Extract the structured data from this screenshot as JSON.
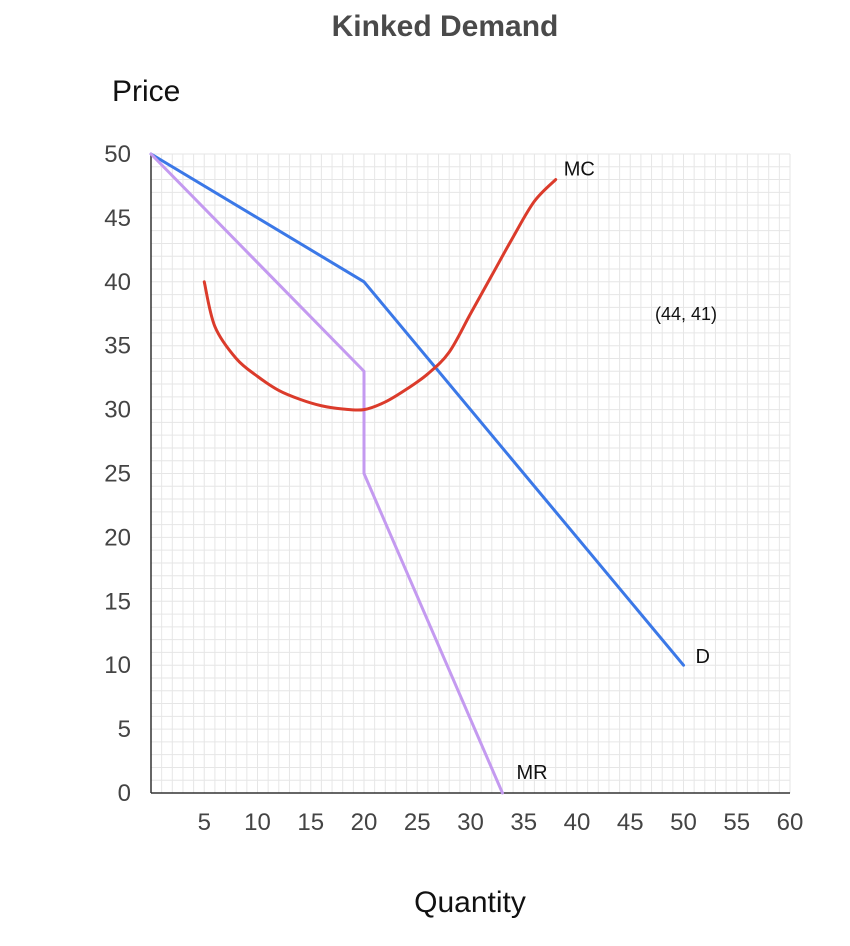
{
  "chart_data": {
    "type": "line",
    "title": "Kinked Demand",
    "xlabel": "Quantity",
    "ylabel": "Price",
    "xlim": [
      0,
      60
    ],
    "ylim": [
      0,
      50
    ],
    "x_ticks": [
      5,
      10,
      15,
      20,
      25,
      30,
      35,
      40,
      45,
      50,
      55,
      60
    ],
    "y_ticks": [
      0,
      5,
      10,
      15,
      20,
      25,
      30,
      35,
      40,
      45,
      50
    ],
    "grid": true,
    "annotation": "(44, 41)",
    "series": [
      {
        "name": "D",
        "color": "#3b78e7",
        "points": [
          [
            0,
            50
          ],
          [
            20,
            40
          ],
          [
            50,
            10
          ]
        ]
      },
      {
        "name": "MR",
        "color": "#c49af0",
        "points": [
          [
            0,
            50
          ],
          [
            20,
            33
          ],
          [
            20,
            25
          ],
          [
            33,
            0
          ]
        ]
      },
      {
        "name": "MC",
        "color": "#db3b2b",
        "points": [
          [
            5,
            40
          ],
          [
            6,
            36.5
          ],
          [
            8,
            34
          ],
          [
            10,
            32.6
          ],
          [
            12,
            31.5
          ],
          [
            14,
            30.8
          ],
          [
            16,
            30.3
          ],
          [
            18,
            30.05
          ],
          [
            20,
            30
          ],
          [
            22,
            30.6
          ],
          [
            24,
            31.6
          ],
          [
            26,
            32.8
          ],
          [
            28,
            34.5
          ],
          [
            30,
            37.5
          ],
          [
            32,
            40.5
          ],
          [
            34,
            43.5
          ],
          [
            36,
            46.3
          ],
          [
            38,
            48
          ]
        ]
      }
    ]
  }
}
